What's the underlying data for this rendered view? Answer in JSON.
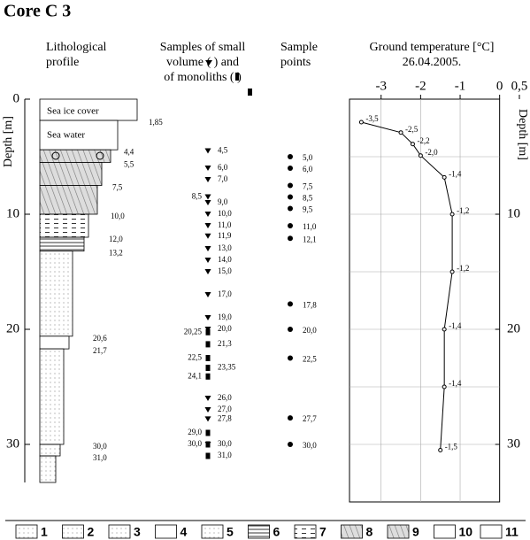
{
  "title": "Core C 3",
  "headers": {
    "lithology": [
      "Lithological",
      "profile"
    ],
    "samples": [
      "Samples of small",
      "volume (    ) and",
      "of monoliths (   )"
    ],
    "points": [
      "Sample",
      "points"
    ],
    "depth_axis": "Depth [m]"
  },
  "lithology": {
    "labels": [
      "Sea ice cover",
      "Sea water"
    ],
    "depth_labels": [
      {
        "value": 1.85,
        "label": "1,85"
      },
      {
        "value": 4.4,
        "label": "4,4"
      },
      {
        "value": 5.5,
        "label": "5,5"
      },
      {
        "value": 7.5,
        "label": "7,5"
      },
      {
        "value": 10,
        "label": "10,0"
      },
      {
        "value": 12,
        "label": "12,0"
      },
      {
        "value": 13.2,
        "label": "13,2"
      },
      {
        "value": 20.6,
        "label": "20,6"
      },
      {
        "value": 21.7,
        "label": "21,7"
      },
      {
        "value": 30,
        "label": "30,0"
      },
      {
        "value": 31,
        "label": "31,0"
      }
    ]
  },
  "samples": [
    {
      "depth": 4.5,
      "label": "4,5",
      "kind": "volume",
      "side": "right"
    },
    {
      "depth": 6,
      "label": "6,0",
      "kind": "volume",
      "side": "right"
    },
    {
      "depth": 7,
      "label": "7,0",
      "kind": "volume",
      "side": "right"
    },
    {
      "depth": 8.5,
      "label": "8,5",
      "kind": "volume",
      "side": "left"
    },
    {
      "depth": 9,
      "label": "9,0",
      "kind": "volume",
      "side": "right"
    },
    {
      "depth": 10,
      "label": "10,0",
      "kind": "volume",
      "side": "right"
    },
    {
      "depth": 11,
      "label": "11,0",
      "kind": "volume",
      "side": "right"
    },
    {
      "depth": 11.9,
      "label": "11,9",
      "kind": "volume",
      "side": "right"
    },
    {
      "depth": 13,
      "label": "13,0",
      "kind": "volume",
      "side": "right"
    },
    {
      "depth": 14,
      "label": "14,0",
      "kind": "volume",
      "side": "right"
    },
    {
      "depth": 15,
      "label": "15,0",
      "kind": "volume",
      "side": "right"
    },
    {
      "depth": 17,
      "label": "17,0",
      "kind": "volume",
      "side": "right"
    },
    {
      "depth": 19,
      "label": "19,0",
      "kind": "volume",
      "side": "right"
    },
    {
      "depth": 20,
      "label": "20,0",
      "kind": "volume",
      "side": "right"
    },
    {
      "depth": 20.25,
      "label": "20,25",
      "kind": "monolith",
      "side": "left"
    },
    {
      "depth": 21.3,
      "label": "21,3",
      "kind": "monolith",
      "side": "right"
    },
    {
      "depth": 22.5,
      "label": "22,5",
      "kind": "monolith",
      "side": "left"
    },
    {
      "depth": 23.35,
      "label": "23,35",
      "kind": "monolith",
      "side": "right"
    },
    {
      "depth": 24.1,
      "label": "24,1",
      "kind": "monolith",
      "side": "left"
    },
    {
      "depth": 26,
      "label": "26,0",
      "kind": "volume",
      "side": "right"
    },
    {
      "depth": 27,
      "label": "27,0",
      "kind": "volume",
      "side": "right"
    },
    {
      "depth": 27.8,
      "label": "27,8",
      "kind": "volume",
      "side": "right"
    },
    {
      "depth": 29,
      "label": "29,0",
      "kind": "monolith",
      "side": "left"
    },
    {
      "depth": 30,
      "label": "30,0",
      "kind": "monolith",
      "side": "left"
    },
    {
      "depth": 30,
      "label": "30,0",
      "kind": "volume",
      "side": "right"
    },
    {
      "depth": 31,
      "label": "31,0",
      "kind": "monolith",
      "side": "right"
    }
  ],
  "sample_points": [
    {
      "depth": 5,
      "label": "5,0"
    },
    {
      "depth": 6,
      "label": "6,0"
    },
    {
      "depth": 7.5,
      "label": "7,5"
    },
    {
      "depth": 8.5,
      "label": "8,5"
    },
    {
      "depth": 9.5,
      "label": "9,5"
    },
    {
      "depth": 11,
      "label": "11,0"
    },
    {
      "depth": 12.1,
      "label": "12,1"
    },
    {
      "depth": 17.8,
      "label": "17,8"
    },
    {
      "depth": 20,
      "label": "20,0"
    },
    {
      "depth": 22.5,
      "label": "22,5"
    },
    {
      "depth": 27.7,
      "label": "27,7"
    },
    {
      "depth": 30,
      "label": "30,0"
    }
  ],
  "legend": [
    "1",
    "2",
    "3",
    "4",
    "5",
    "6",
    "7",
    "8",
    "9",
    "10",
    "11"
  ],
  "chart_data": {
    "type": "line",
    "title": "Ground temperature [°C]",
    "subtitle": "26.04.2005.",
    "y_label": "Depth [m]",
    "temperature": [
      -3.5,
      -2.5,
      -2.2,
      -2.0,
      -1.4,
      -1.2,
      -1.2,
      -1.4,
      -1.4,
      -1.5
    ],
    "depth": [
      2.0,
      2.9,
      3.9,
      4.9,
      6.8,
      10,
      15,
      20,
      25,
      30.5
    ],
    "value_labels": [
      "-3,5",
      "-2,5",
      "-2,2",
      "-2,0",
      "-1,4",
      "-1,2",
      "-1,2",
      "-1,4",
      "-1,4",
      "-1,5"
    ],
    "xlim": [
      -3.8,
      0.5
    ],
    "xticks": [
      -3,
      -2,
      -1,
      0,
      {
        "value": 0.5,
        "label": "0,5"
      }
    ],
    "ylim": [
      0,
      35
    ],
    "yticks": [
      0,
      10,
      20,
      30
    ],
    "ygrid": [
      5,
      10,
      15,
      20,
      25,
      30
    ],
    "grid": true,
    "color": "#000000"
  }
}
